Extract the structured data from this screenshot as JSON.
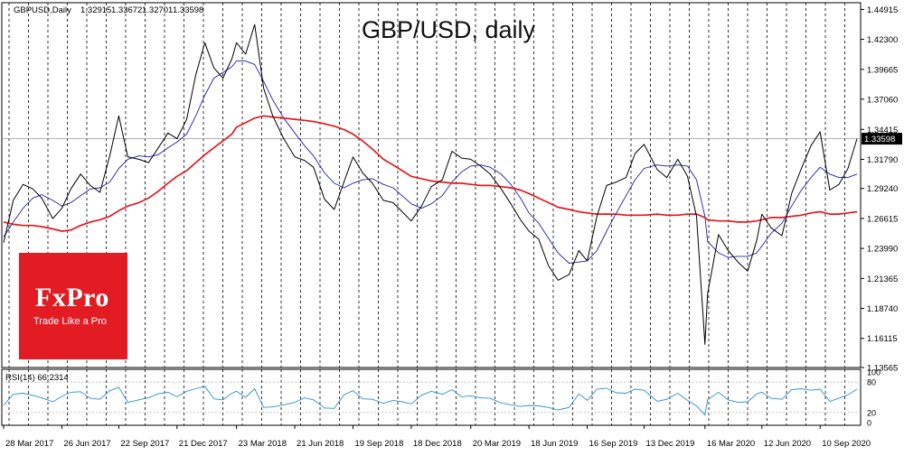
{
  "chart_data": {
    "type": "line",
    "title": "GBP/USD, daily",
    "header": {
      "symbol": "GBPUSD,Daily",
      "open": "1.32915",
      "high": "1.33672",
      "low": "1.32701",
      "close": "1.33598"
    },
    "last_price_label": "1.33598",
    "ylim": [
      1.13565,
      1.45505
    ],
    "y_ticks": [
      "1.44915",
      "1.42300",
      "1.39665",
      "1.37060",
      "1.34415",
      "1.31790",
      "1.29240",
      "1.26615",
      "1.23990",
      "1.21365",
      "1.18740",
      "1.16115",
      "1.13565"
    ],
    "x_ticks": [
      "28 Mar 2017",
      "26 Jun 2017",
      "22 Sep 2017",
      "21 Dec 2017",
      "23 Mar 2018",
      "21 Jun 2018",
      "19 Sep 2018",
      "18 Dec 2018",
      "20 Mar 2019",
      "18 Jun 2019",
      "16 Sep 2019",
      "13 Dec 2019",
      "16 Mar 2020",
      "12 Jun 2020",
      "10 Sep 2020"
    ],
    "series": [
      {
        "role": "price",
        "color": "#000000",
        "x": [
          "28 Mar 2017",
          "12 Apr 2017",
          "27 Apr 2017",
          "12 May 2017",
          "26 May 2017",
          "12 Jun 2017",
          "26 Jun 2017",
          "10 Jul 2017",
          "25 Jul 2017",
          "9 Aug 2017",
          "24 Aug 2017",
          "8 Sep 2017",
          "22 Sep 2017",
          "6 Oct 2017",
          "23 Oct 2017",
          "7 Nov 2017",
          "22 Nov 2017",
          "7 Dec 2017",
          "21 Dec 2017",
          "5 Jan 2018",
          "19 Jan 2018",
          "2 Feb 2018",
          "16 Feb 2018",
          "2 Mar 2018",
          "16 Mar 2018",
          "23 Mar 2018",
          "6 Apr 2018",
          "20 Apr 2018",
          "4 May 2018",
          "18 May 2018",
          "4 Jun 2018",
          "21 Jun 2018",
          "6 Jul 2018",
          "20 Jul 2018",
          "6 Aug 2018",
          "21 Aug 2018",
          "5 Sep 2018",
          "19 Sep 2018",
          "4 Oct 2018",
          "19 Oct 2018",
          "5 Nov 2018",
          "20 Nov 2018",
          "4 Dec 2018",
          "18 Dec 2018",
          "3 Jan 2019",
          "18 Jan 2019",
          "4 Feb 2019",
          "19 Feb 2019",
          "6 Mar 2019",
          "20 Mar 2019",
          "4 Apr 2019",
          "19 Apr 2019",
          "6 May 2019",
          "21 May 2019",
          "5 Jun 2019",
          "18 Jun 2019",
          "3 Jul 2019",
          "18 Jul 2019",
          "2 Aug 2019",
          "19 Aug 2019",
          "3 Sep 2019",
          "16 Sep 2019",
          "1 Oct 2019",
          "16 Oct 2019",
          "31 Oct 2019",
          "15 Nov 2019",
          "29 Nov 2019",
          "13 Dec 2019",
          "2 Jan 2020",
          "17 Jan 2020",
          "3 Feb 2020",
          "18 Feb 2020",
          "3 Mar 2020",
          "16 Mar 2020",
          "20 Mar 2020",
          "6 Apr 2020",
          "21 Apr 2020",
          "6 May 2020",
          "21 May 2020",
          "4 Jun 2020",
          "12 Jun 2020",
          "26 Jun 2020",
          "13 Jul 2020",
          "28 Jul 2020",
          "12 Aug 2020",
          "27 Aug 2020",
          "10 Sep 2020",
          "25 Sep 2020",
          "9 Oct 2020",
          "23 Oct 2020",
          "6 Nov 2020"
        ],
        "values": [
          1.245,
          1.282,
          1.296,
          1.292,
          1.284,
          1.266,
          1.275,
          1.292,
          1.305,
          1.295,
          1.289,
          1.321,
          1.356,
          1.32,
          1.318,
          1.315,
          1.328,
          1.341,
          1.336,
          1.353,
          1.392,
          1.42,
          1.398,
          1.389,
          1.406,
          1.42,
          1.41,
          1.436,
          1.38,
          1.356,
          1.336,
          1.32,
          1.317,
          1.311,
          1.283,
          1.274,
          1.298,
          1.32,
          1.306,
          1.297,
          1.282,
          1.28,
          1.272,
          1.264,
          1.277,
          1.294,
          1.3,
          1.325,
          1.319,
          1.318,
          1.312,
          1.305,
          1.292,
          1.279,
          1.265,
          1.255,
          1.248,
          1.225,
          1.212,
          1.217,
          1.238,
          1.229,
          1.268,
          1.295,
          1.298,
          1.302,
          1.323,
          1.331,
          1.309,
          1.302,
          1.318,
          1.303,
          1.268,
          1.156,
          1.2,
          1.252,
          1.238,
          1.228,
          1.22,
          1.247,
          1.27,
          1.258,
          1.251,
          1.288,
          1.31,
          1.33,
          1.342,
          1.291,
          1.296,
          1.31,
          1.336
        ]
      },
      {
        "role": "moving-average-short",
        "color": "#1f1fa8",
        "values": [
          1.25,
          1.263,
          1.275,
          1.284,
          1.287,
          1.282,
          1.277,
          1.28,
          1.286,
          1.292,
          1.293,
          1.298,
          1.31,
          1.318,
          1.321,
          1.32,
          1.322,
          1.328,
          1.333,
          1.34,
          1.356,
          1.374,
          1.389,
          1.394,
          1.399,
          1.404,
          1.404,
          1.401,
          1.386,
          1.37,
          1.354,
          1.341,
          1.33,
          1.321,
          1.306,
          1.297,
          1.293,
          1.297,
          1.3,
          1.301,
          1.296,
          1.293,
          1.286,
          1.279,
          1.275,
          1.279,
          1.286,
          1.298,
          1.307,
          1.312,
          1.313,
          1.311,
          1.305,
          1.296,
          1.284,
          1.271,
          1.262,
          1.249,
          1.236,
          1.227,
          1.228,
          1.229,
          1.238,
          1.255,
          1.271,
          1.286,
          1.3,
          1.31,
          1.313,
          1.312,
          1.313,
          1.312,
          1.3,
          1.268,
          1.246,
          1.236,
          1.232,
          1.233,
          1.233,
          1.236,
          1.242,
          1.253,
          1.262,
          1.277,
          1.291,
          1.302,
          1.311,
          1.305,
          1.302,
          1.302,
          1.305
        ]
      },
      {
        "role": "moving-average-long",
        "color": "#e4191d",
        "values": [
          1.263,
          1.261,
          1.26,
          1.26,
          1.259,
          1.257,
          1.255,
          1.256,
          1.26,
          1.263,
          1.265,
          1.268,
          1.273,
          1.277,
          1.28,
          1.284,
          1.29,
          1.297,
          1.303,
          1.308,
          1.315,
          1.322,
          1.328,
          1.334,
          1.34,
          1.346,
          1.35,
          1.354,
          1.356,
          1.355,
          1.354,
          1.353,
          1.352,
          1.351,
          1.349,
          1.347,
          1.344,
          1.34,
          1.334,
          1.327,
          1.318,
          1.313,
          1.308,
          1.303,
          1.301,
          1.299,
          1.298,
          1.297,
          1.297,
          1.296,
          1.295,
          1.295,
          1.294,
          1.293,
          1.291,
          1.288,
          1.284,
          1.28,
          1.276,
          1.274,
          1.272,
          1.271,
          1.27,
          1.27,
          1.27,
          1.269,
          1.269,
          1.269,
          1.27,
          1.269,
          1.269,
          1.27,
          1.27,
          1.267,
          1.265,
          1.264,
          1.264,
          1.263,
          1.263,
          1.264,
          1.265,
          1.267,
          1.267,
          1.268,
          1.269,
          1.271,
          1.272,
          1.27,
          1.27,
          1.271,
          1.272
        ]
      }
    ],
    "rsi": {
      "label": "RSI(14) 66.2314",
      "ylim": [
        0,
        100
      ],
      "ticks": [
        "100",
        "80",
        "20",
        "0"
      ],
      "values": [
        34,
        56,
        58,
        54,
        49,
        41,
        52,
        60,
        61,
        48,
        46,
        63,
        70,
        40,
        45,
        49,
        57,
        60,
        51,
        62,
        67,
        72,
        47,
        45,
        58,
        62,
        50,
        67,
        30,
        31,
        35,
        40,
        49,
        45,
        29,
        28,
        55,
        63,
        47,
        46,
        38,
        44,
        41,
        37,
        54,
        62,
        56,
        65,
        51,
        53,
        49,
        48,
        39,
        35,
        32,
        34,
        33,
        30,
        25,
        30,
        57,
        44,
        66,
        68,
        59,
        58,
        66,
        64,
        42,
        46,
        58,
        44,
        33,
        15,
        45,
        60,
        45,
        40,
        41,
        57,
        60,
        48,
        46,
        65,
        67,
        64,
        66,
        42,
        48,
        55,
        66
      ]
    },
    "logo": {
      "name": "FxPro",
      "tagline": "Trade Like a Pro"
    }
  }
}
